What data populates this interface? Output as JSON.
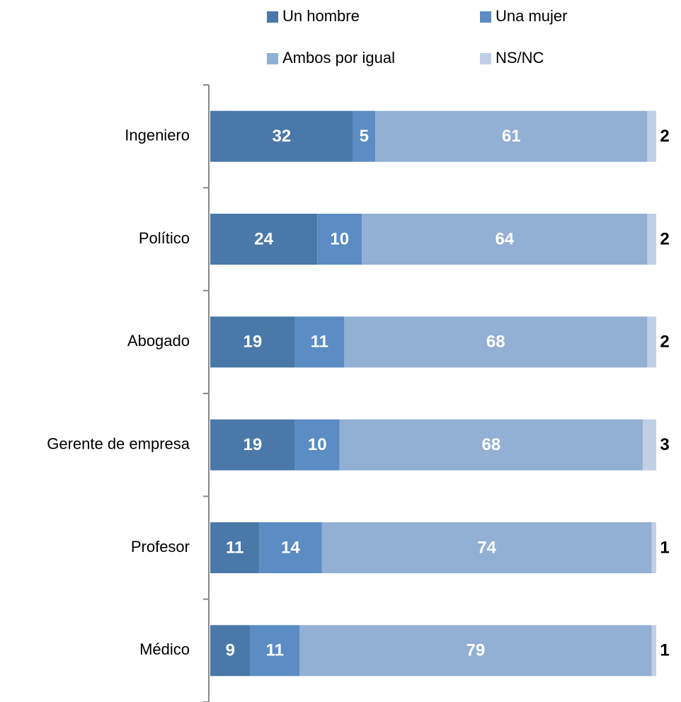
{
  "chart_data": {
    "type": "bar",
    "orientation": "horizontal",
    "stacked": true,
    "categories": [
      "Ingeniero",
      "Político",
      "Abogado",
      "Gerente de empresa",
      "Profesor",
      "Médico"
    ],
    "xlim": [
      0,
      100
    ],
    "legend": "top",
    "series": [
      {
        "name": "Un hombre",
        "color": "#4a78a8",
        "values": [
          32,
          24,
          19,
          19,
          11,
          9
        ]
      },
      {
        "name": "Una mujer",
        "color": "#5b8cc4",
        "values": [
          5,
          10,
          11,
          10,
          14,
          11
        ]
      },
      {
        "name": "Ambos por igual",
        "color": "#92afd4",
        "values": [
          61,
          64,
          68,
          68,
          74,
          79
        ]
      },
      {
        "name": "NS/NC",
        "color": "#c0cfe6",
        "values": [
          2,
          2,
          2,
          3,
          1,
          1
        ]
      }
    ]
  }
}
